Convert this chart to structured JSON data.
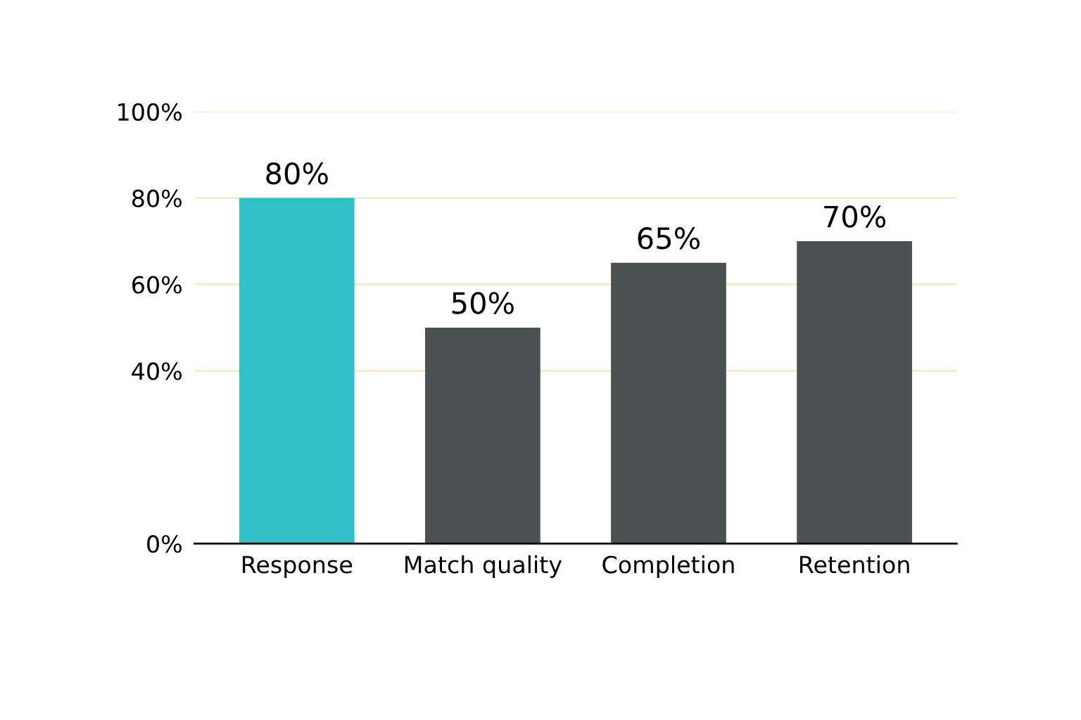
{
  "chart_data": {
    "type": "bar",
    "categories": [
      "Response",
      "Match quality",
      "Completion",
      "Retention"
    ],
    "values": [
      80,
      50,
      65,
      70
    ],
    "colors": [
      "#33bfc8",
      "#4a5150",
      "#4a5150",
      "#4a5150"
    ],
    "ylim": [
      0,
      100
    ],
    "yticks": [
      {
        "value": 0,
        "label": "0%"
      },
      {
        "value": 40,
        "label": "40%"
      },
      {
        "value": 60,
        "label": "60%"
      },
      {
        "value": 80,
        "label": "80%"
      },
      {
        "value": 100,
        "label": "100%"
      }
    ],
    "value_labels": [
      "80%",
      "50%",
      "65%",
      "70%"
    ],
    "grid": "y"
  }
}
